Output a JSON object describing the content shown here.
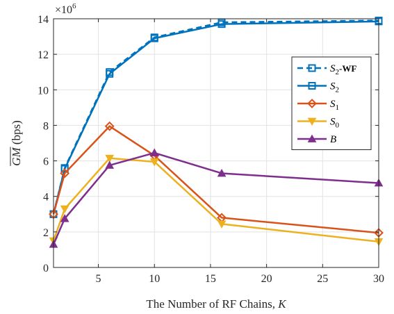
{
  "chart_data": {
    "type": "line",
    "x": [
      1,
      2,
      6,
      10,
      16,
      30
    ],
    "xlim": [
      1,
      30
    ],
    "ylim": [
      0,
      14000000
    ],
    "xticks": [
      5,
      10,
      15,
      20,
      25,
      30
    ],
    "xtick_labels": [
      "5",
      "10",
      "15",
      "20",
      "25",
      "30"
    ],
    "yticks": [
      0,
      2000000,
      4000000,
      6000000,
      8000000,
      10000000,
      12000000,
      14000000
    ],
    "ytick_labels": [
      "0",
      "2",
      "4",
      "6",
      "8",
      "10",
      "12",
      "14"
    ],
    "y_multiplier_label": "×10",
    "y_multiplier_exp": "6",
    "xlabel": "The Number of RF Chains, ",
    "xlabel_var": "K",
    "ylabel_var": "GM",
    "ylabel_unit": " (bps)",
    "grid": true,
    "legend_position": "right",
    "series": [
      {
        "name": "S",
        "sub": "2",
        "suffix": "-WF",
        "color": "#0072BD",
        "dashed": true,
        "marker": "square",
        "values": [
          3000000,
          5600000,
          11000000,
          12950000,
          13800000,
          13900000
        ]
      },
      {
        "name": "S",
        "sub": "2",
        "suffix": "",
        "color": "#0072BD",
        "dashed": false,
        "marker": "square",
        "values": [
          3000000,
          5550000,
          10900000,
          12900000,
          13700000,
          13850000
        ]
      },
      {
        "name": "S",
        "sub": "1",
        "suffix": "",
        "color": "#D95319",
        "dashed": false,
        "marker": "diamond",
        "values": [
          3000000,
          5300000,
          7950000,
          6300000,
          2800000,
          1950000
        ]
      },
      {
        "name": "S",
        "sub": "0",
        "suffix": "",
        "color": "#EDB120",
        "dashed": false,
        "marker": "triangle-down",
        "values": [
          1500000,
          3300000,
          6150000,
          5950000,
          2450000,
          1450000
        ]
      },
      {
        "name": "B",
        "sub": "",
        "suffix": "",
        "color": "#7E2F8E",
        "dashed": false,
        "marker": "triangle-up",
        "values": [
          1300000,
          2750000,
          5750000,
          6450000,
          5300000,
          4750000
        ]
      }
    ]
  }
}
